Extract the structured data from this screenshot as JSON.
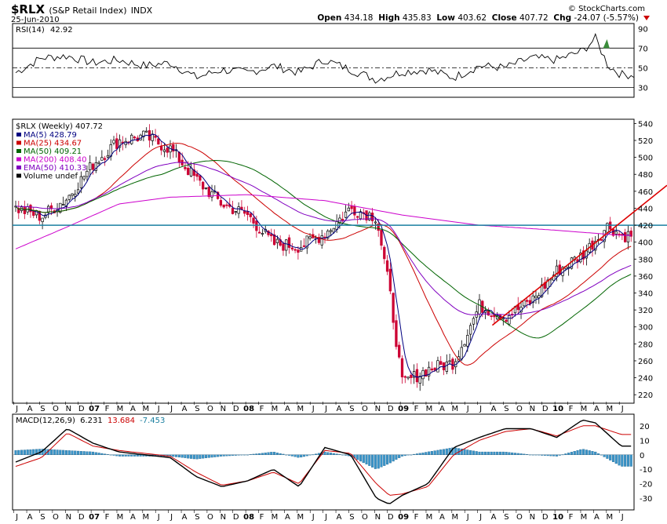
{
  "header": {
    "symbol": "$RLX",
    "name": "(S&P Retail Index)",
    "exchange": "INDX",
    "date": "25-Jun-2010",
    "brand": "© StockCharts.com",
    "open_label": "Open",
    "open": "434.18",
    "high_label": "High",
    "high": "435.83",
    "low_label": "Low",
    "low": "403.62",
    "close_label": "Close",
    "close": "407.72",
    "chg_label": "Chg",
    "chg": "-24.07 (-5.57%)"
  },
  "rsi": {
    "label": "RSI(14)",
    "value": "42.92",
    "ticks": [
      "90",
      "70",
      "50",
      "30"
    ]
  },
  "price": {
    "legend_title": "$RLX (Weekly) 407.72",
    "legend": [
      {
        "text": "MA(5) 428.79",
        "color": "#000080"
      },
      {
        "text": "MA(25) 434.67",
        "color": "#cc0000"
      },
      {
        "text": "MA(50) 409.21",
        "color": "#006400"
      },
      {
        "text": "MA(200) 408.40",
        "color": "#cc00cc"
      },
      {
        "text": "EMA(50) 410.33",
        "color": "#8000c0"
      },
      {
        "text": "Volume undef",
        "color": "#000000"
      }
    ],
    "ticks": [
      "540",
      "520",
      "500",
      "480",
      "460",
      "440",
      "420",
      "400",
      "380",
      "360",
      "340",
      "320",
      "300",
      "280",
      "260",
      "240",
      "220"
    ],
    "colors": {
      "up": "#000000",
      "down": "#cc0033",
      "support": "#1a7fa0",
      "trend": "#dd0000"
    }
  },
  "macd": {
    "label": "MACD(12,26,9)",
    "macd": "6.231",
    "signal": "13.684",
    "hist": "-7.453",
    "ticks": [
      "20",
      "10",
      "0",
      "-10",
      "-20",
      "-30"
    ]
  },
  "axis": {
    "months": [
      "J",
      "A",
      "S",
      "O",
      "N",
      "D",
      "07",
      "F",
      "M",
      "A",
      "M",
      "J",
      "J",
      "A",
      "S",
      "O",
      "N",
      "D",
      "08",
      "F",
      "M",
      "A",
      "M",
      "J",
      "J",
      "A",
      "S",
      "O",
      "N",
      "D",
      "09",
      "F",
      "M",
      "A",
      "M",
      "J",
      "J",
      "A",
      "S",
      "O",
      "N",
      "D",
      "10",
      "F",
      "M",
      "A",
      "M",
      "J"
    ],
    "month_bold": [
      false,
      false,
      false,
      false,
      false,
      false,
      true,
      false,
      false,
      false,
      false,
      false,
      false,
      false,
      false,
      false,
      false,
      false,
      true,
      false,
      false,
      false,
      false,
      false,
      false,
      false,
      false,
      false,
      false,
      false,
      true,
      false,
      false,
      false,
      false,
      false,
      false,
      false,
      false,
      false,
      false,
      false,
      true,
      false,
      false,
      false,
      false,
      false
    ]
  },
  "chart_data": {
    "type": "line",
    "title": "$RLX (S&P Retail Index) Weekly",
    "x_range": [
      "2006-07",
      "2010-06"
    ],
    "ylim": [
      210,
      545
    ],
    "series": [
      {
        "name": "Close",
        "month": [
          0,
          2,
          4,
          6,
          8,
          10,
          12,
          14,
          16,
          18,
          20,
          22,
          24,
          26,
          28,
          29,
          30,
          32,
          34,
          36,
          38,
          40,
          42,
          44,
          46,
          47
        ],
        "values": [
          440,
          430,
          452,
          492,
          520,
          525,
          510,
          474,
          445,
          432,
          398,
          395,
          410,
          440,
          430,
          345,
          233,
          250,
          258,
          325,
          312,
          330,
          366,
          385,
          420,
          408
        ]
      },
      {
        "name": "MA(200)",
        "month": [
          0,
          4,
          8,
          12,
          18,
          24,
          30,
          36,
          42,
          47
        ],
        "values": [
          392,
          418,
          445,
          453,
          456,
          449,
          432,
          420,
          414,
          408
        ]
      },
      {
        "name": "Support level",
        "values": [
          420
        ]
      },
      {
        "name": "Trendline",
        "points": [
          [
            37,
            302
          ],
          [
            48,
            467
          ]
        ]
      }
    ]
  },
  "rsi_data": {
    "ylim": [
      20,
      95
    ],
    "month": [
      0,
      2,
      4,
      6,
      8,
      10,
      12,
      14,
      16,
      18,
      20,
      22,
      24,
      26,
      28,
      30,
      32,
      34,
      36,
      38,
      40,
      42,
      44,
      45,
      46,
      47
    ],
    "values": [
      45,
      60,
      62,
      55,
      58,
      52,
      55,
      40,
      48,
      45,
      52,
      45,
      58,
      48,
      38,
      46,
      48,
      40,
      52,
      50,
      60,
      58,
      67,
      80,
      52,
      43
    ]
  },
  "macd_data": {
    "ylim": [
      -38,
      28
    ],
    "month": [
      0,
      2,
      4,
      6,
      8,
      10,
      12,
      14,
      16,
      18,
      20,
      22,
      24,
      26,
      28,
      29,
      30,
      32,
      34,
      36,
      38,
      40,
      42,
      44,
      45,
      47
    ],
    "macd": [
      -5,
      2,
      18,
      8,
      2,
      0,
      -2,
      -15,
      -22,
      -18,
      -10,
      -22,
      5,
      0,
      -30,
      -34,
      -28,
      -20,
      5,
      12,
      18,
      18,
      12,
      24,
      22,
      6
    ],
    "signal": [
      -8,
      -2,
      15,
      6,
      3,
      1,
      -1,
      -12,
      -21,
      -18,
      -12,
      -20,
      3,
      1,
      -20,
      -28,
      -27,
      -22,
      0,
      10,
      16,
      18,
      13,
      20,
      20,
      14
    ]
  }
}
